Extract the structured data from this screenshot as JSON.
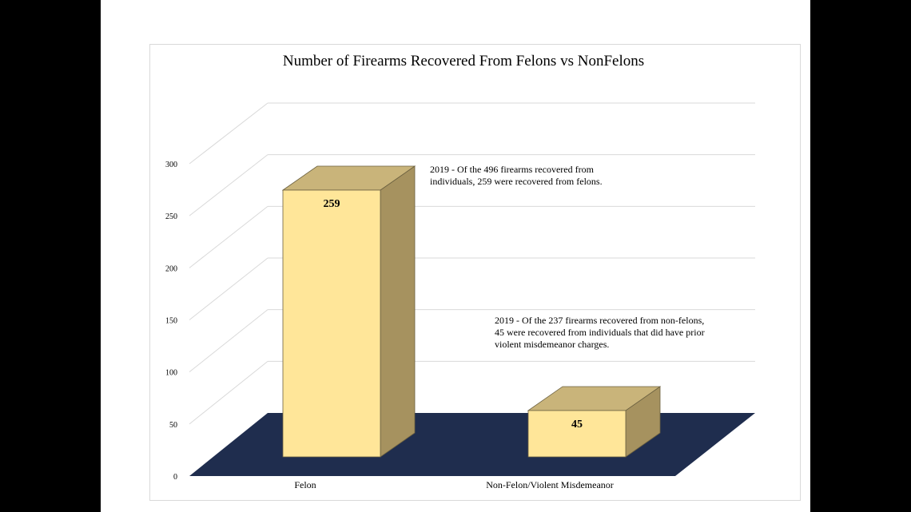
{
  "chart_data": {
    "type": "bar",
    "title": "Number of Firearms Recovered From Felons vs NonFelons",
    "categories": [
      "Felon",
      "Non-Felon/Violent Misdemeanor"
    ],
    "values": [
      259,
      45
    ],
    "ylim": [
      0,
      300
    ],
    "yticks": [
      0,
      50,
      100,
      150,
      200,
      250,
      300
    ],
    "grid": true,
    "three_d": true,
    "colors": {
      "bar_front": "#ffe699",
      "bar_top": "#c9b47a",
      "bar_side": "#a6925f",
      "floor": "#1f2d4e",
      "grid": "#d9d9d9"
    },
    "data_labels": [
      "259",
      "45"
    ],
    "annotations": [
      {
        "lines": [
          "2019 - Of the 496 firearms recovered from",
          "individuals, 259 were recovered from felons."
        ]
      },
      {
        "lines": [
          "2019 - Of the 237 firearms recovered from non-felons,",
          "45 were recovered from individuals that did have prior",
          "violent misdemeanor charges."
        ]
      }
    ]
  }
}
